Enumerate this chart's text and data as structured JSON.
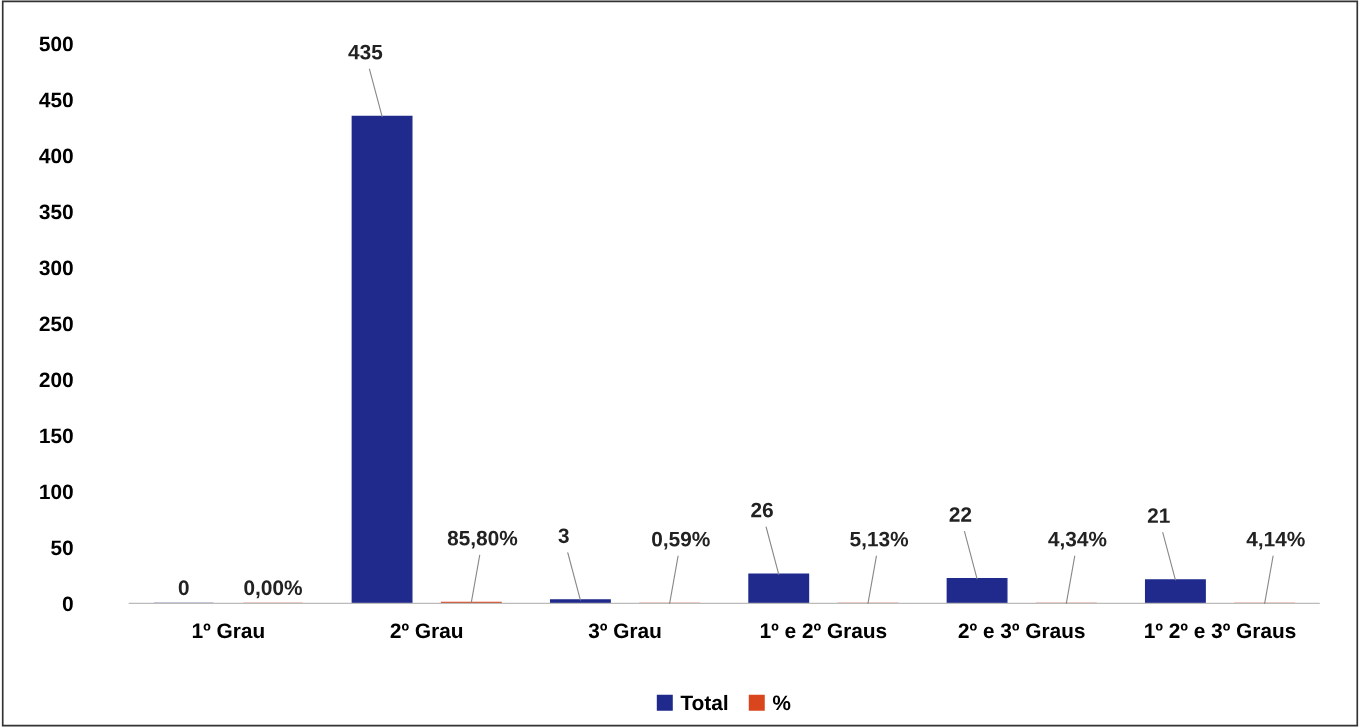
{
  "chart_data": {
    "type": "bar",
    "categories": [
      "1º Grau",
      "2º Grau",
      "3º Grau",
      "1º e 2º Graus",
      "2º e 3º Graus",
      "1º 2º e 3º Graus"
    ],
    "series": [
      {
        "name": "Total",
        "color": "#1f2a8c",
        "values": [
          0,
          435,
          3,
          26,
          22,
          21
        ],
        "value_labels": [
          "0",
          "435",
          "3",
          "26",
          "22",
          "21"
        ]
      },
      {
        "name": "%",
        "color": "#d9461e",
        "values": [
          0,
          0.858,
          0.0059,
          0.0513,
          0.0434,
          0.0414
        ],
        "value_labels": [
          "0,00%",
          "85,80%",
          "0,59%",
          "5,13%",
          "4,34%",
          "4,14%"
        ]
      }
    ],
    "ylim": [
      0,
      500
    ],
    "yticks": [
      0,
      50,
      100,
      150,
      200,
      250,
      300,
      350,
      400,
      450,
      500
    ],
    "grid": false,
    "legend": "bottom"
  }
}
